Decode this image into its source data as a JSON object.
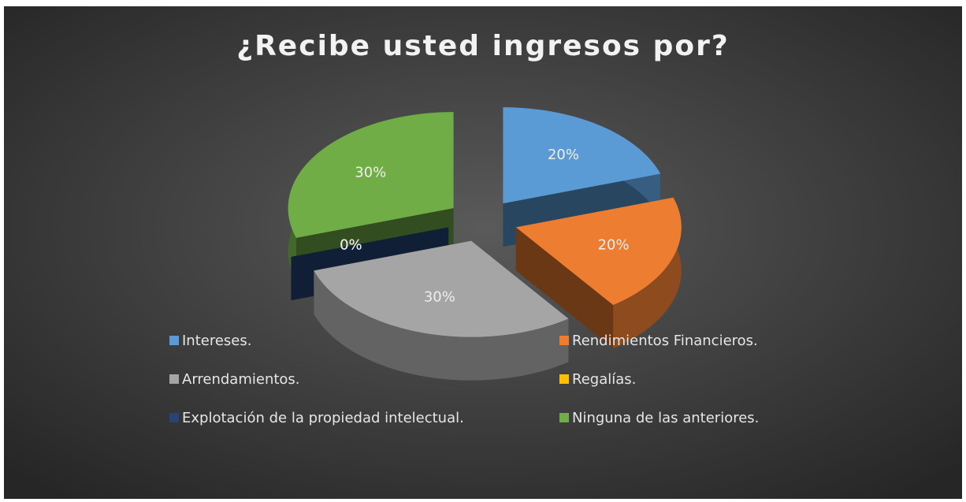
{
  "chart_data": {
    "type": "pie3d",
    "title": "¿Recibe usted ingresos por?",
    "categories": [
      "Intereses.",
      "Rendimientos Financieros.",
      "Arrendamientos.",
      "Regalías.",
      "Explotación de la propiedad intelectual.",
      "Ninguna de las anteriores."
    ],
    "values": [
      20,
      20,
      30,
      0,
      0,
      30
    ],
    "value_labels": [
      "20%",
      "20%",
      "30%",
      "0%",
      "0%",
      "30%"
    ],
    "colors": [
      "#5b9bd5",
      "#ed7d31",
      "#a5a5a5",
      "#ffc000",
      "#264478",
      "#70ad47"
    ]
  }
}
